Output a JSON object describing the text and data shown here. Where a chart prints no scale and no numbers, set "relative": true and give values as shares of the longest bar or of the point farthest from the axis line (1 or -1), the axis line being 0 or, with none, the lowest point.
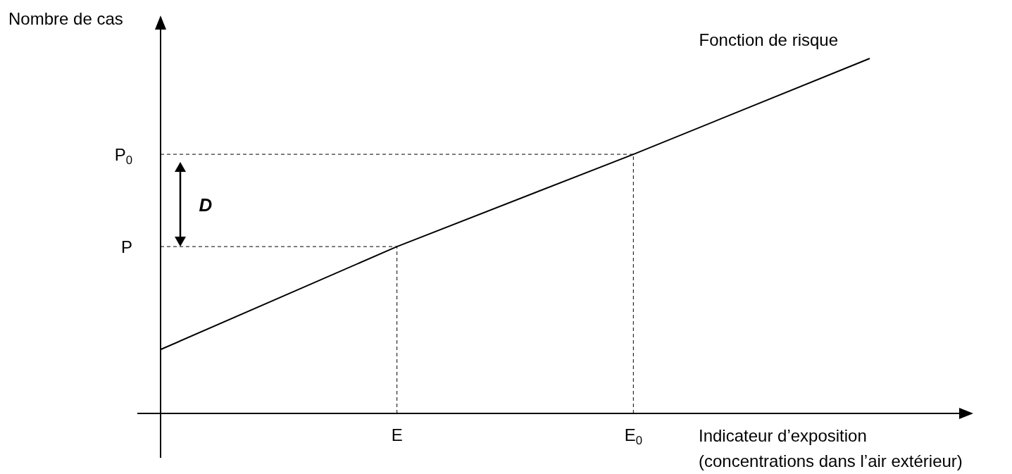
{
  "chart_data": {
    "type": "line",
    "relative": true,
    "ylabel": "Nombre de cas",
    "xlabel": "Indicateur d’exposition\n(concentrations dans l’air extérieur)",
    "categories": [
      null,
      "E",
      "E$_{0}$",
      null
    ],
    "series": [
      {
        "name": "Fonction de risque",
        "color": "#000000",
        "values": [
          0.18,
          0.47,
          0.73,
          1
        ]
      }
    ],
    "ref_lines": [
      {
        "axis": "y",
        "value": 0.47,
        "label": "P",
        "line_style": "dashed"
      },
      {
        "axis": "y",
        "value": 0.73,
        "label": "P$_{0}$",
        "line_style": "dashed"
      },
      {
        "axis": "x",
        "value": "E",
        "line_style": "dashed"
      },
      {
        "axis": "x",
        "value": "E$_{0}$",
        "line_style": "dashed"
      }
    ],
    "annotations": [
      "D"
    ]
  }
}
